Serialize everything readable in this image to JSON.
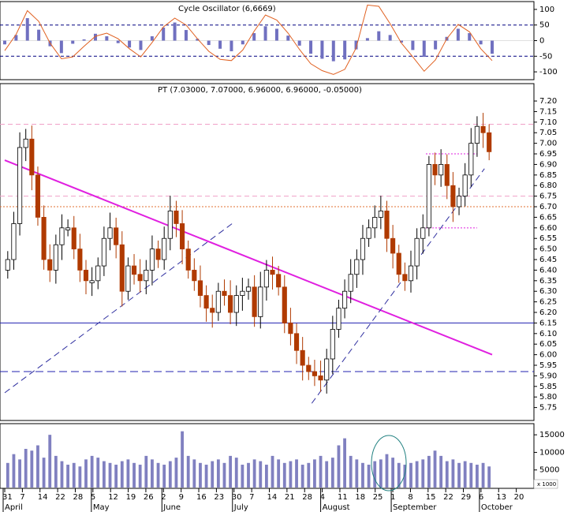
{
  "chart_data": [
    {
      "type": "line+bar",
      "panel": "oscillator",
      "title": "Cycle Oscillator (6,6669)",
      "ylim": [
        -120,
        120
      ],
      "yticks": [
        100,
        50,
        0,
        -50,
        -100
      ],
      "reference_levels": [
        50,
        -50
      ],
      "x": [
        0,
        3,
        6,
        9,
        12,
        15,
        18,
        21,
        24,
        27,
        30,
        33,
        36,
        39,
        42,
        45,
        48,
        51,
        54,
        57,
        60,
        63,
        66,
        69,
        72,
        75,
        78,
        81,
        84,
        87,
        90,
        93,
        96,
        99,
        102,
        105,
        108,
        111,
        114,
        117,
        120,
        123,
        126,
        129
      ],
      "series": [
        {
          "kind": "histogram",
          "values": [
            -12,
            18,
            72,
            35,
            -18,
            -40,
            -10,
            4,
            22,
            14,
            -8,
            -22,
            -30,
            14,
            42,
            58,
            34,
            6,
            -14,
            -26,
            -34,
            -12,
            24,
            46,
            38,
            16,
            -16,
            -42,
            -58,
            -66,
            -60,
            -28,
            8,
            30,
            18,
            -6,
            -30,
            -52,
            -28,
            12,
            38,
            24,
            -12,
            -42
          ]
        },
        {
          "kind": "line",
          "values": [
            -32,
            20,
            96,
            62,
            -8,
            -58,
            -52,
            -18,
            14,
            24,
            6,
            -26,
            -52,
            -6,
            44,
            72,
            50,
            6,
            -34,
            -60,
            -64,
            -30,
            30,
            82,
            66,
            24,
            -28,
            -74,
            -96,
            -108,
            -92,
            -24,
            114,
            110,
            54,
            -8,
            -52,
            -98,
            -62,
            6,
            52,
            28,
            -26,
            -64
          ]
        }
      ]
    },
    {
      "type": "candlestick",
      "panel": "price",
      "title": "PT (7.03000, 7.07000, 6.96000, 6.96000, -0.05000)",
      "ylim": [
        5.7,
        7.23
      ],
      "yticks": [
        7.2,
        7.15,
        7.1,
        7.05,
        7.0,
        6.95,
        6.9,
        6.85,
        6.8,
        6.75,
        6.7,
        6.65,
        6.6,
        6.55,
        6.5,
        6.45,
        6.4,
        6.35,
        6.3,
        6.25,
        6.2,
        6.15,
        6.1,
        6.05,
        6.0,
        5.95,
        5.9,
        5.85,
        5.8,
        5.75
      ],
      "close": [
        6.45,
        6.62,
        6.98,
        7.02,
        6.85,
        6.65,
        6.45,
        6.4,
        6.52,
        6.6,
        6.6,
        6.5,
        6.4,
        6.35,
        6.35,
        6.42,
        6.55,
        6.6,
        6.52,
        6.3,
        6.42,
        6.38,
        6.35,
        6.4,
        6.5,
        6.45,
        6.55,
        6.68,
        6.62,
        6.5,
        6.4,
        6.35,
        6.28,
        6.22,
        6.2,
        6.3,
        6.28,
        6.2,
        6.28,
        6.3,
        6.32,
        6.18,
        6.32,
        6.4,
        6.38,
        6.32,
        6.15,
        6.1,
        6.02,
        5.95,
        5.92,
        5.9,
        5.88,
        5.98,
        6.12,
        6.22,
        6.3,
        6.38,
        6.45,
        6.55,
        6.6,
        6.65,
        6.68,
        6.55,
        6.48,
        6.38,
        6.35,
        6.42,
        6.55,
        6.6,
        6.9,
        6.85,
        6.9,
        6.8,
        6.7,
        6.75,
        6.85,
        7.0,
        7.08,
        7.05,
        6.96
      ],
      "reference_levels": [
        {
          "y": 7.09,
          "style": "dashed-pink"
        },
        {
          "y": 6.75,
          "style": "dashed-pink"
        },
        {
          "y": 6.7,
          "style": "dotted-orange"
        },
        {
          "y": 6.15,
          "style": "solid-blue"
        },
        {
          "y": 5.92,
          "style": "dashed-blue"
        },
        {
          "y": 6.95,
          "style": "dotted-magenta-short"
        },
        {
          "y": 6.6,
          "style": "dotted-magenta-short"
        }
      ],
      "trendlines": [
        {
          "from": [
            0,
            6.92
          ],
          "to": [
            127,
            6.0
          ],
          "style": "solid-magenta"
        },
        {
          "from": [
            0,
            5.82
          ],
          "to": [
            60,
            6.63
          ],
          "style": "dashed-blue"
        },
        {
          "from": [
            80,
            5.77
          ],
          "to": [
            125,
            6.88
          ],
          "style": "dashed-blue"
        }
      ]
    },
    {
      "type": "bar",
      "panel": "volume",
      "yticks": [
        15000,
        10000,
        5000
      ],
      "unit_label": "x 1000",
      "values": [
        7000,
        9500,
        8000,
        11000,
        10500,
        12000,
        8500,
        15000,
        9000,
        7500,
        6500,
        7000,
        6000,
        8000,
        9000,
        8500,
        7500,
        7000,
        6500,
        7500,
        8000,
        7000,
        6500,
        9000,
        8000,
        7000,
        6500,
        7500,
        8500,
        16000,
        9000,
        8000,
        7000,
        6500,
        7500,
        8000,
        7000,
        9000,
        8500,
        6500,
        7000,
        8000,
        7500,
        6500,
        9000,
        8000,
        7000,
        7500,
        8000,
        6500,
        7000,
        8000,
        9000,
        7500,
        8500,
        12000,
        14000,
        9000,
        8000,
        7000,
        6500,
        7500,
        8000,
        9500,
        8500,
        7000,
        6500,
        7000,
        7500,
        8000,
        9000,
        10500,
        9000,
        7500,
        8000,
        7000,
        7500,
        7000,
        6500,
        7000,
        6000
      ]
    }
  ],
  "x_axis": {
    "day_ticks": [
      "31",
      "7",
      "14",
      "22",
      "28",
      "5",
      "12",
      "19",
      "26",
      "2",
      "9",
      "16",
      "23",
      "30",
      "7",
      "14",
      "21",
      "28",
      "4",
      "11",
      "18",
      "25",
      "1",
      "8",
      "15",
      "22",
      "29",
      "6",
      "13",
      "20"
    ],
    "months": [
      "April",
      "May",
      "June",
      "July",
      "August",
      "September",
      "October"
    ]
  },
  "colors": {
    "up": "#ffffff",
    "down": "#b03a00",
    "trend_solid": "#e020e0",
    "dashed_line": "#3030a0",
    "volume": "#8080c0",
    "osc_line": "#e06020",
    "osc_bar": "#7070c0"
  }
}
